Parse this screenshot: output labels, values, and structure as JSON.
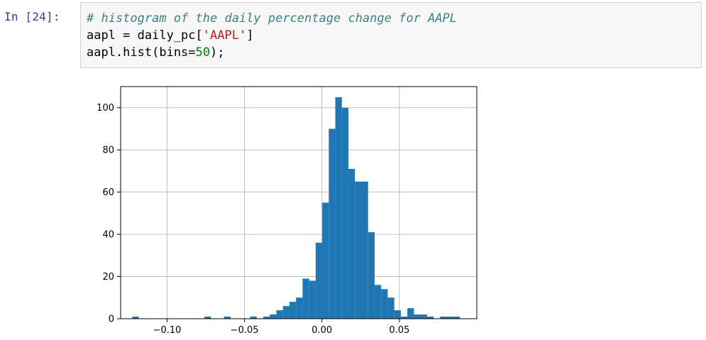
{
  "cell": {
    "prompt": "In [24]:",
    "code": {
      "line1_comment": "# histogram of the daily percentage change for AAPL",
      "line2_prefix": "aapl = daily_pc[",
      "line2_str": "'AAPL'",
      "line2_suffix": "]",
      "line3_prefix": "aapl.hist(bins=",
      "line3_num": "50",
      "line3_suffix": ");"
    }
  },
  "chart_data": {
    "type": "bar",
    "title": "",
    "xlabel": "",
    "ylabel": "",
    "xlim": [
      -0.13,
      0.1
    ],
    "ylim": [
      0,
      110
    ],
    "grid": true,
    "bar_color": "#1f77b4",
    "x_ticks": [
      -0.1,
      -0.05,
      0.0,
      0.05
    ],
    "x_tick_labels": [
      "−0.10",
      "−0.05",
      "0.00",
      "0.05"
    ],
    "y_ticks": [
      0,
      20,
      40,
      60,
      80,
      100
    ],
    "y_tick_labels": [
      "0",
      "20",
      "40",
      "60",
      "80",
      "100"
    ],
    "bin_start": -0.1225,
    "bin_width": 0.00423,
    "counts": [
      1,
      0,
      0,
      0,
      0,
      0,
      0,
      0,
      0,
      0,
      0,
      1,
      0,
      0,
      1,
      0,
      0,
      0,
      1,
      0,
      1,
      2,
      4,
      6,
      8,
      10,
      19,
      18,
      36,
      55,
      90,
      105,
      100,
      71,
      65,
      65,
      41,
      16,
      14,
      10,
      4,
      1,
      5,
      2,
      2,
      1,
      0,
      1,
      1,
      1
    ]
  }
}
